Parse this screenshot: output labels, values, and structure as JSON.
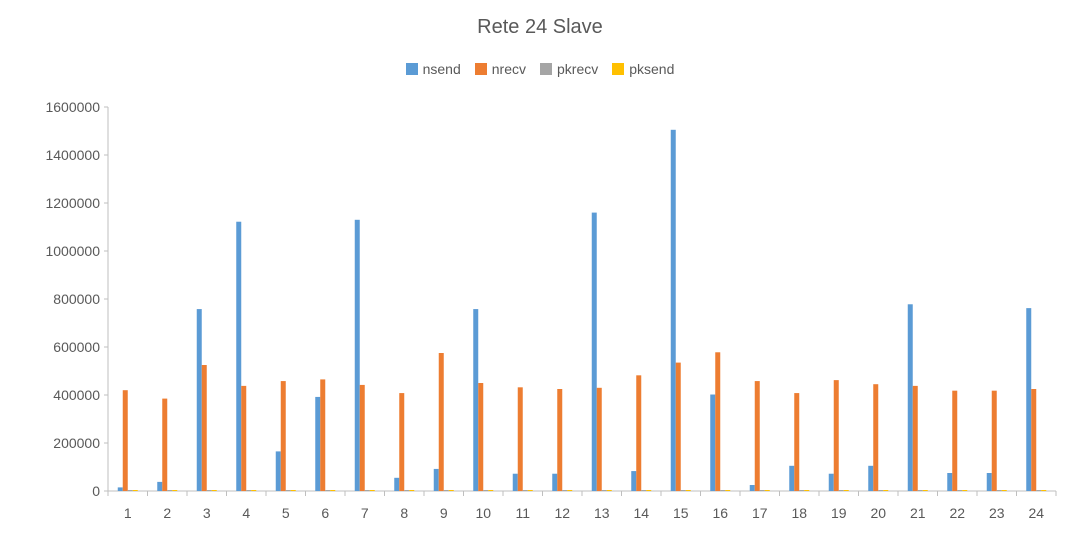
{
  "chart_data": {
    "type": "bar",
    "title": "Rete 24 Slave",
    "categories": [
      "1",
      "2",
      "3",
      "4",
      "5",
      "6",
      "7",
      "8",
      "9",
      "10",
      "11",
      "12",
      "13",
      "14",
      "15",
      "16",
      "17",
      "18",
      "19",
      "20",
      "21",
      "22",
      "23",
      "24"
    ],
    "series": [
      {
        "name": "nsend",
        "color": "#5B9BD5",
        "values": [
          15000,
          38000,
          758000,
          1122000,
          165000,
          392000,
          1130000,
          55000,
          92000,
          758000,
          72000,
          72000,
          1160000,
          83000,
          1505000,
          402000,
          25000,
          105000,
          72000,
          105000,
          778000,
          75000,
          75000,
          762000
        ]
      },
      {
        "name": "nrecv",
        "color": "#ED7D31",
        "values": [
          420000,
          385000,
          525000,
          438000,
          458000,
          465000,
          442000,
          408000,
          575000,
          450000,
          432000,
          425000,
          430000,
          482000,
          535000,
          578000,
          458000,
          408000,
          462000,
          445000,
          438000,
          418000,
          418000,
          425000
        ]
      },
      {
        "name": "pkrecv",
        "color": "#A5A5A5",
        "values": [
          0,
          0,
          0,
          0,
          0,
          0,
          0,
          0,
          0,
          0,
          0,
          0,
          0,
          0,
          0,
          0,
          0,
          0,
          0,
          0,
          0,
          0,
          0,
          0
        ]
      },
      {
        "name": "pksend",
        "color": "#FFC000",
        "values": [
          0,
          0,
          0,
          0,
          0,
          0,
          0,
          0,
          0,
          0,
          0,
          0,
          0,
          0,
          0,
          0,
          0,
          0,
          0,
          0,
          0,
          0,
          0,
          0
        ]
      }
    ],
    "ylim": [
      0,
      1600000
    ],
    "yticks": [
      0,
      200000,
      400000,
      600000,
      800000,
      1000000,
      1200000,
      1400000,
      1600000
    ],
    "ytick_labels": [
      "0",
      "200000",
      "400000",
      "600000",
      "800000",
      "1000000",
      "1200000",
      "1400000",
      "1600000"
    ],
    "legend_position": "top-center",
    "grid": false
  }
}
